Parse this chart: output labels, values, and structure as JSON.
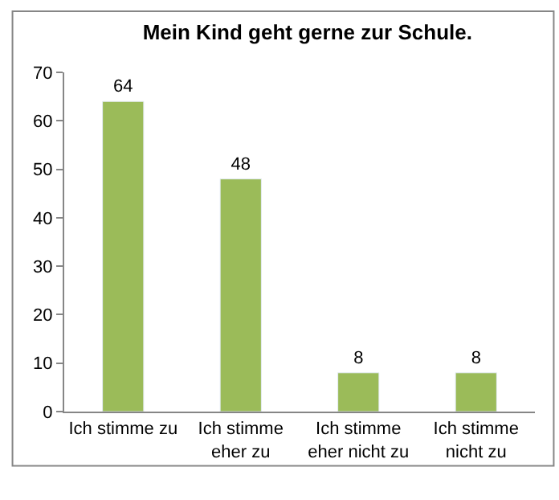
{
  "chart_data": {
    "type": "bar",
    "title": "Mein Kind geht gerne zur Schule.",
    "categories": [
      "Ich stimme zu",
      "Ich stimme eher zu",
      "Ich stimme eher nicht zu",
      "Ich stimme nicht zu"
    ],
    "values": [
      64,
      48,
      8,
      8
    ],
    "color": "#9bbb59",
    "ylim": [
      0,
      70
    ],
    "yticks": [
      0,
      10,
      20,
      30,
      40,
      50,
      60,
      70
    ],
    "grid": false,
    "data_labels": true,
    "legend": false
  }
}
